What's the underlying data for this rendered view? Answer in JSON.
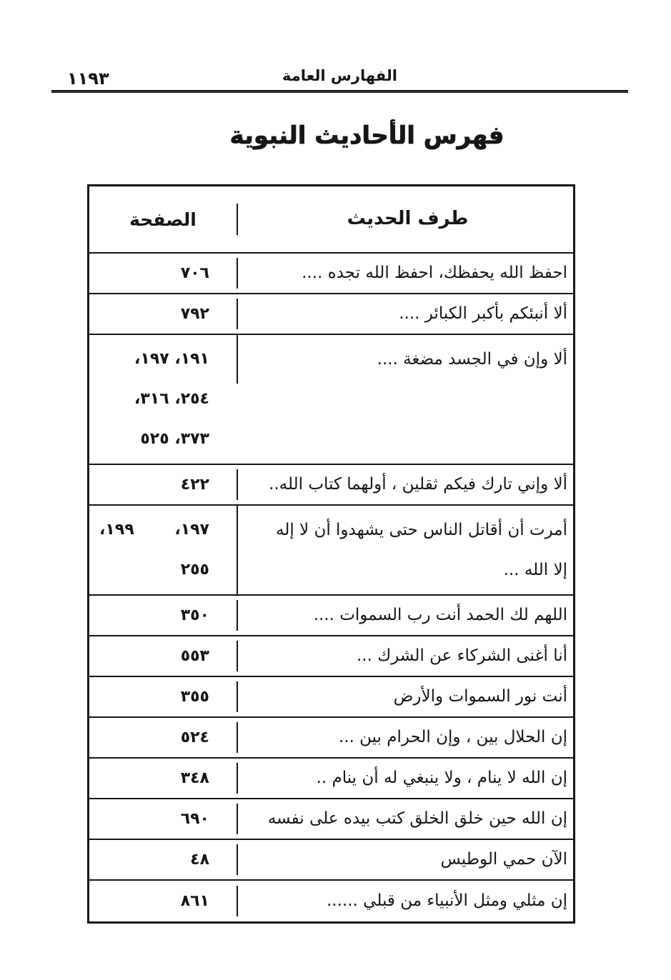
{
  "colors": {
    "ink": "#161616",
    "paper": "#ffffff"
  },
  "header": {
    "page_number": "١١٩٣",
    "section_title": "الفهارس العامة"
  },
  "title": "فهرس الأحاديث النبوية",
  "table": {
    "page_col_header": "الصفحة",
    "hadith_col_header": "طرف الحديث",
    "rows": [
      {
        "hadith_lines": [
          "احفظ الله يحفظك، احفظ الله تجده ...."
        ],
        "pages": [
          [
            "٧٠٦"
          ]
        ]
      },
      {
        "hadith_lines": [
          "ألا أنبئكم بأكبر الكبائر ...."
        ],
        "pages": [
          [
            "٧٩٢"
          ]
        ]
      },
      {
        "hadith_lines": [
          "ألا وإن في الجسد مضغة ...."
        ],
        "pages": [
          [
            "١٩١، ١٩٧،"
          ],
          [
            "٢٥٤، ٣١٦،"
          ],
          [
            "٣٧٣، ٥٢٥"
          ]
        ]
      },
      {
        "hadith_lines": [
          "ألا وإني تارك فيكم ثقلين ، أولهما كتاب الله.."
        ],
        "pages": [
          [
            "٤٢٢"
          ]
        ]
      },
      {
        "hadith_lines": [
          "أمرت أن أقاتل الناس حتى يشهدوا أن لا إله",
          "إلا الله ..."
        ],
        "pages": [
          [
            "١٩٧،",
            "١٩٩،"
          ],
          [
            "٢٥٥"
          ]
        ]
      },
      {
        "hadith_lines": [
          "اللهم لك الحمد أنت رب السموات ...."
        ],
        "pages": [
          [
            "٣٥٠"
          ]
        ]
      },
      {
        "hadith_lines": [
          "أنا أغنى الشركاء عن الشرك ..."
        ],
        "pages": [
          [
            "٥٥٣"
          ]
        ]
      },
      {
        "hadith_lines": [
          "أنت نور السموات والأرض"
        ],
        "pages": [
          [
            "٣٥٥"
          ]
        ]
      },
      {
        "hadith_lines": [
          "إن الحلال بين ، وإن الحرام بين ..."
        ],
        "pages": [
          [
            "٥٢٤"
          ]
        ]
      },
      {
        "hadith_lines": [
          "إن الله لا ينام ، ولا ينبغي له أن ينام .."
        ],
        "pages": [
          [
            "٣٤٨"
          ]
        ]
      },
      {
        "hadith_lines": [
          "إن الله حين خلق الخلق كتب بيده على نفسه"
        ],
        "pages": [
          [
            "٦٩٠"
          ]
        ]
      },
      {
        "hadith_lines": [
          "الآن حمي الوطيس"
        ],
        "pages": [
          [
            "٤٨"
          ]
        ]
      },
      {
        "hadith_lines": [
          "إن مثلي ومثل الأنبياء من قبلي ......"
        ],
        "pages": [
          [
            "٨٦١"
          ]
        ]
      }
    ]
  }
}
